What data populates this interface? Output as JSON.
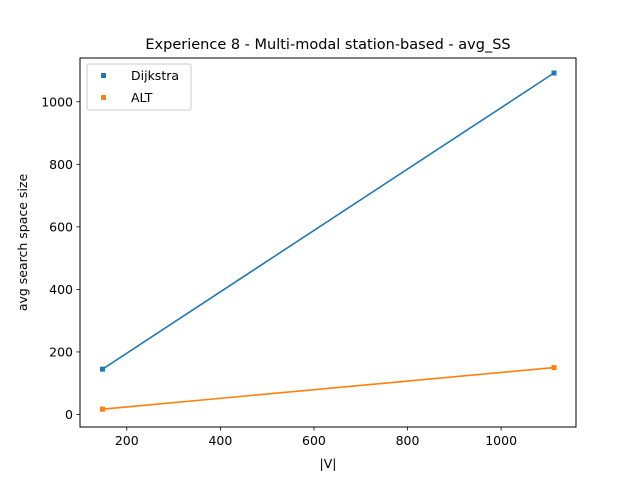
{
  "chart_data": {
    "type": "line",
    "title": "Experience 8 - Multi-modal station-based - avg_SS",
    "xlabel": "|V|",
    "ylabel": "avg search space size",
    "xlim": [
      100,
      1160
    ],
    "ylim": [
      -40,
      1140
    ],
    "xticks": [
      200,
      400,
      600,
      800,
      1000
    ],
    "yticks": [
      0,
      200,
      400,
      600,
      800,
      1000
    ],
    "grid": false,
    "legend_position": "top-left",
    "series": [
      {
        "name": "Dijkstra",
        "color": "#1f77b4",
        "x": [
          148,
          1113
        ],
        "y": [
          145,
          1092
        ]
      },
      {
        "name": "ALT",
        "color": "#ff7f0e",
        "x": [
          148,
          1113
        ],
        "y": [
          17,
          150
        ]
      }
    ]
  }
}
